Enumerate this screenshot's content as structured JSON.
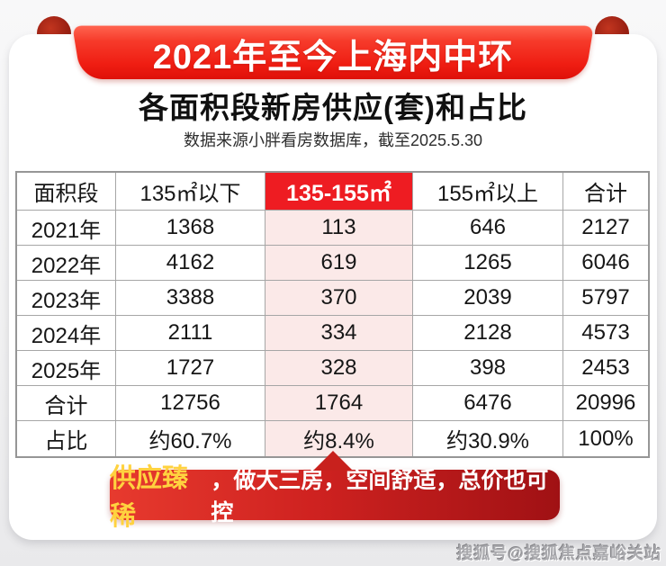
{
  "banner": {
    "title": "2021年至今上海内中环"
  },
  "heading": {
    "title": "各面积段新房供应(套)和占比",
    "source": "数据来源小胖看房数据库，截至2025.5.30"
  },
  "table": {
    "columns": [
      "面积段",
      "135㎡以下",
      "135-155㎡",
      "155㎡以上",
      "合计"
    ],
    "highlighted_column": "135-155㎡",
    "rows": [
      {
        "label": "2021年",
        "values": [
          "1368",
          "113",
          "646",
          "2127"
        ]
      },
      {
        "label": "2022年",
        "values": [
          "4162",
          "619",
          "1265",
          "6046"
        ]
      },
      {
        "label": "2023年",
        "values": [
          "3388",
          "370",
          "2039",
          "5797"
        ]
      },
      {
        "label": "2024年",
        "values": [
          "2111",
          "334",
          "2128",
          "4573"
        ]
      },
      {
        "label": "2025年",
        "values": [
          "1727",
          "328",
          "398",
          "2453"
        ]
      },
      {
        "label": "合计",
        "values": [
          "12756",
          "1764",
          "6476",
          "20996"
        ]
      },
      {
        "label": "占比",
        "values": [
          "约60.7%",
          "约8.4%",
          "约30.9%",
          "100%"
        ]
      }
    ]
  },
  "callout": {
    "highlight": "供应臻稀",
    "rest": "，做大三房，空间舒适，总价也可控"
  },
  "watermark": "搜狐号@搜狐焦点嘉峪关站",
  "colors": {
    "ribbon_red": "#ef1d12",
    "header_red": "#ee1c22",
    "highlight_pink": "#fbe9e8",
    "callout_red_start": "#e73a2e",
    "callout_red_end": "#a01114",
    "gold": "#ffd23f"
  },
  "chart_data": {
    "type": "table",
    "title": "2021年至今上海内中环 各面积段新房供应(套)和占比",
    "source": "数据来源小胖看房数据库，截至2025.5.30",
    "columns": [
      "面积段",
      "135㎡以下",
      "135-155㎡",
      "155㎡以上",
      "合计"
    ],
    "highlighted_column": "135-155㎡",
    "rows": [
      [
        "2021年",
        1368,
        113,
        646,
        2127
      ],
      [
        "2022年",
        4162,
        619,
        1265,
        6046
      ],
      [
        "2023年",
        3388,
        370,
        2039,
        5797
      ],
      [
        "2024年",
        2111,
        334,
        2128,
        4573
      ],
      [
        "2025年",
        1727,
        328,
        398,
        2453
      ],
      [
        "合计",
        12756,
        1764,
        6476,
        20996
      ],
      [
        "占比",
        "约60.7%",
        "约8.4%",
        "约30.9%",
        "100%"
      ]
    ],
    "annotation": "供应臻稀，做大三房，空间舒适，总价也可控"
  }
}
